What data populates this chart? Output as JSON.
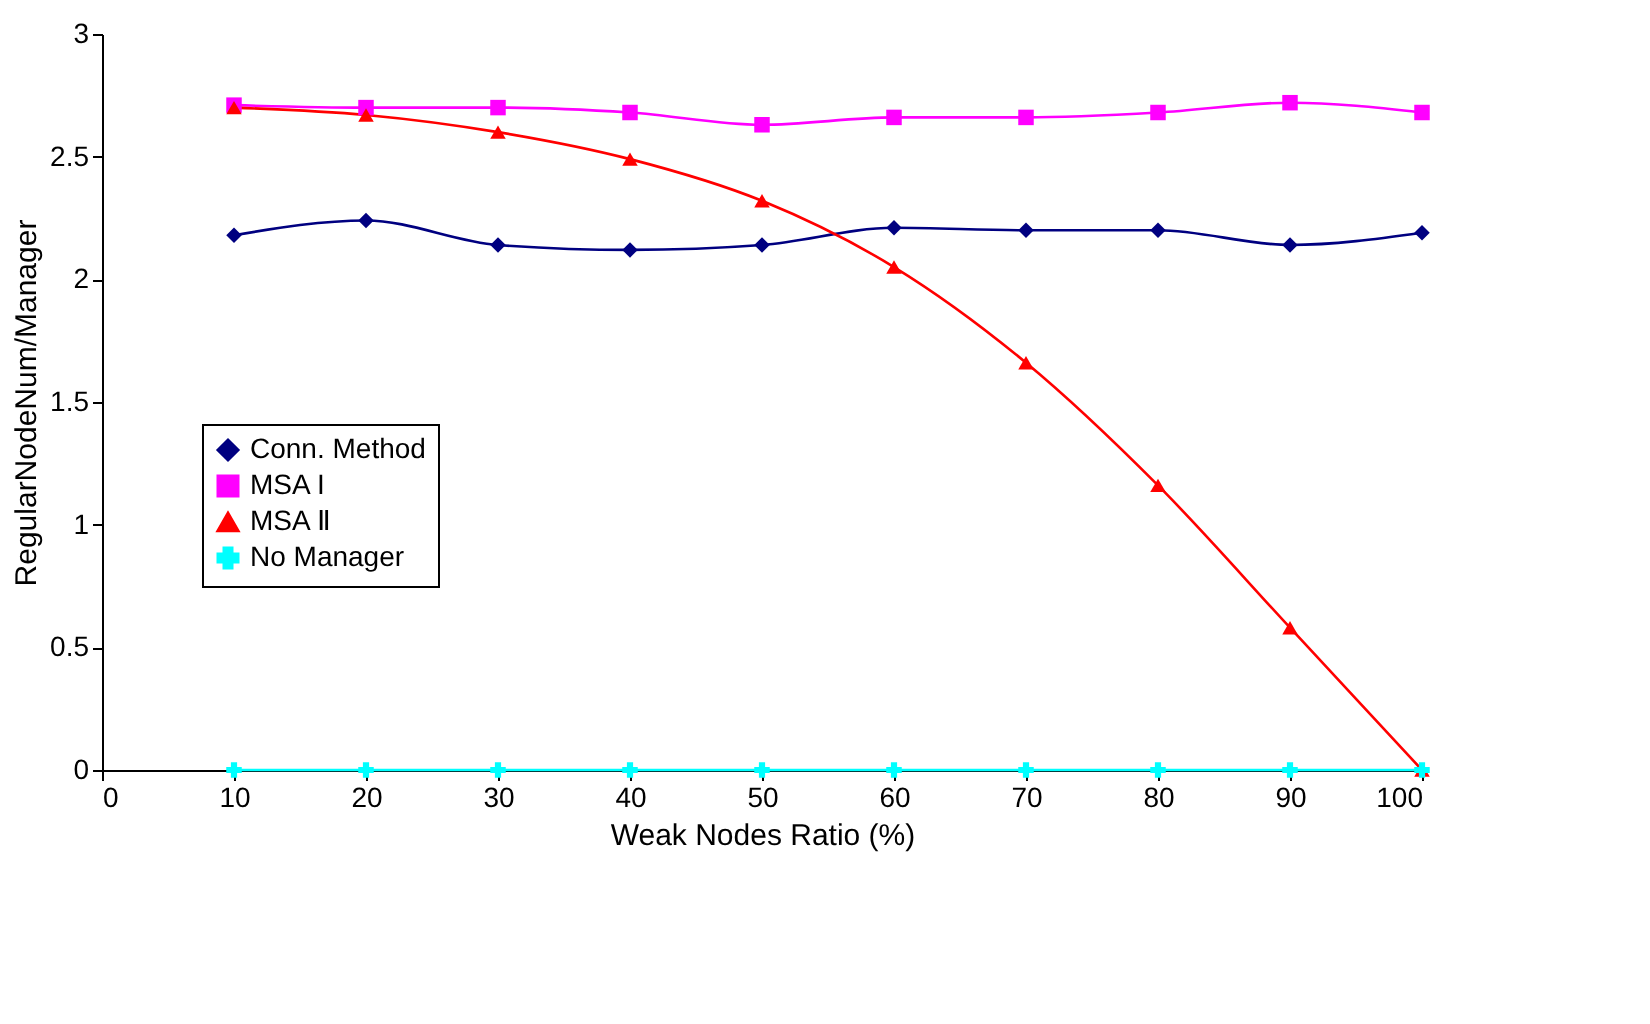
{
  "chart_data": {
    "type": "line",
    "xlabel": "Weak Nodes Ratio (%)",
    "ylabel": "RegularNodeNum/Manager",
    "x": [
      10,
      20,
      30,
      40,
      50,
      60,
      70,
      80,
      90,
      100
    ],
    "series": [
      {
        "name": "Conn. Method",
        "color": "#000080",
        "marker": "diamond",
        "values": [
          2.18,
          2.24,
          2.14,
          2.12,
          2.14,
          2.21,
          2.2,
          2.2,
          2.14,
          2.19
        ]
      },
      {
        "name": "MSA I",
        "color": "#ff00ff",
        "marker": "square",
        "values": [
          2.71,
          2.7,
          2.7,
          2.68,
          2.63,
          2.66,
          2.66,
          2.68,
          2.72,
          2.68
        ]
      },
      {
        "name": "MSA Ⅱ",
        "color": "#ff0000",
        "marker": "triangle",
        "values": [
          2.7,
          2.67,
          2.6,
          2.49,
          2.32,
          2.05,
          1.66,
          1.16,
          0.58,
          0
        ]
      },
      {
        "name": "No Manager",
        "color": "#00ffff",
        "marker": "cross",
        "values": [
          0,
          0,
          0,
          0,
          0,
          0,
          0,
          0,
          0,
          0
        ]
      }
    ],
    "xlim": [
      0,
      100
    ],
    "xticks": [
      0,
      10,
      20,
      30,
      40,
      50,
      60,
      70,
      80,
      90,
      100
    ],
    "ylim": [
      0,
      3
    ],
    "yticks": [
      0,
      0.5,
      1,
      1.5,
      2,
      2.5,
      3
    ],
    "grid": false,
    "legend": "left",
    "line_style": "solid"
  }
}
